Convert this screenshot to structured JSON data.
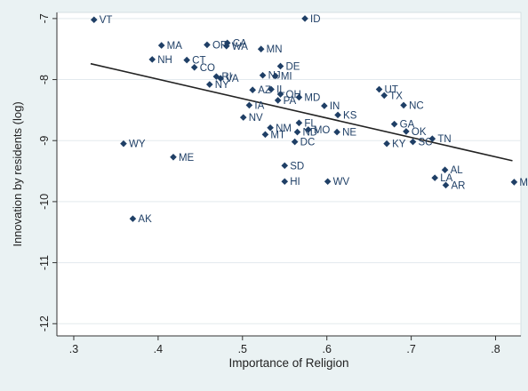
{
  "chart_data": {
    "type": "scatter",
    "title": "",
    "xlabel": "Importance of Religion",
    "ylabel": "Innovation by residents (log)",
    "xlim": [
      0.28,
      0.83
    ],
    "ylim": [
      -12.2,
      -6.9
    ],
    "xticks": [
      0.3,
      0.4,
      0.5,
      0.6,
      0.7,
      0.8
    ],
    "xtick_labels": [
      ".3",
      ".4",
      ".5",
      ".6",
      ".7",
      ".8"
    ],
    "yticks": [
      -7,
      -8,
      -9,
      -10,
      -11,
      -12
    ],
    "ytick_labels": [
      "-7",
      "-8",
      "-9",
      "-10",
      "-11",
      "-12"
    ],
    "grid": true,
    "legend": "none",
    "colors": {
      "page_background": "#eaf2f3",
      "plot_background": "#ffffff",
      "marker": "#1f3f66",
      "label": "#1f3f66",
      "fit_line": "#222222",
      "grid": "#e3eaee",
      "axis": "#333333"
    },
    "fit_line": {
      "x": [
        0.32,
        0.82
      ],
      "y": [
        -7.74,
        -9.33
      ]
    },
    "points": [
      {
        "label": "VT",
        "x": 0.324,
        "y": -7.02
      },
      {
        "label": "ID",
        "x": 0.574,
        "y": -7.0
      },
      {
        "label": "MA",
        "x": 0.404,
        "y": -7.44
      },
      {
        "label": "OR",
        "x": 0.458,
        "y": -7.43
      },
      {
        "label": "CA",
        "x": 0.482,
        "y": -7.4
      },
      {
        "label": "WA",
        "x": 0.481,
        "y": -7.45
      },
      {
        "label": "MN",
        "x": 0.522,
        "y": -7.5
      },
      {
        "label": "NH",
        "x": 0.393,
        "y": -7.67
      },
      {
        "label": "CT",
        "x": 0.434,
        "y": -7.68
      },
      {
        "label": "CO",
        "x": 0.443,
        "y": -7.8
      },
      {
        "label": "DE",
        "x": 0.545,
        "y": -7.78
      },
      {
        "label": "RI",
        "x": 0.469,
        "y": -7.95
      },
      {
        "label": "NJ",
        "x": 0.524,
        "y": -7.93
      },
      {
        "label": "MI",
        "x": 0.539,
        "y": -7.94
      },
      {
        "label": "VA",
        "x": 0.474,
        "y": -7.98
      },
      {
        "label": "NY",
        "x": 0.461,
        "y": -8.08
      },
      {
        "label": "AZ",
        "x": 0.512,
        "y": -8.17
      },
      {
        "label": "IL",
        "x": 0.534,
        "y": -8.16
      },
      {
        "label": "OH",
        "x": 0.545,
        "y": -8.24
      },
      {
        "label": "MD",
        "x": 0.567,
        "y": -8.29
      },
      {
        "label": "PA",
        "x": 0.542,
        "y": -8.34
      },
      {
        "label": "IA",
        "x": 0.508,
        "y": -8.42
      },
      {
        "label": "IN",
        "x": 0.597,
        "y": -8.43
      },
      {
        "label": "UT",
        "x": 0.662,
        "y": -8.16
      },
      {
        "label": "TX",
        "x": 0.668,
        "y": -8.26
      },
      {
        "label": "NC",
        "x": 0.691,
        "y": -8.42
      },
      {
        "label": "KS",
        "x": 0.613,
        "y": -8.58
      },
      {
        "label": "NV",
        "x": 0.501,
        "y": -8.62
      },
      {
        "label": "FL",
        "x": 0.567,
        "y": -8.71
      },
      {
        "label": "GA",
        "x": 0.68,
        "y": -8.73
      },
      {
        "label": "NM",
        "x": 0.533,
        "y": -8.79
      },
      {
        "label": "MT",
        "x": 0.527,
        "y": -8.9
      },
      {
        "label": "MO",
        "x": 0.578,
        "y": -8.82
      },
      {
        "label": "ND",
        "x": 0.565,
        "y": -8.86
      },
      {
        "label": "NE",
        "x": 0.612,
        "y": -8.86
      },
      {
        "label": "OK",
        "x": 0.694,
        "y": -8.85
      },
      {
        "label": "DC",
        "x": 0.562,
        "y": -9.02
      },
      {
        "label": "TN",
        "x": 0.725,
        "y": -8.97
      },
      {
        "label": "SC",
        "x": 0.702,
        "y": -9.02
      },
      {
        "label": "KY",
        "x": 0.671,
        "y": -9.05
      },
      {
        "label": "WY",
        "x": 0.359,
        "y": -9.05
      },
      {
        "label": "ME",
        "x": 0.418,
        "y": -9.27
      },
      {
        "label": "SD",
        "x": 0.55,
        "y": -9.41
      },
      {
        "label": "AL",
        "x": 0.74,
        "y": -9.48
      },
      {
        "label": "LA",
        "x": 0.728,
        "y": -9.61
      },
      {
        "label": "HI",
        "x": 0.55,
        "y": -9.67
      },
      {
        "label": "WV",
        "x": 0.601,
        "y": -9.67
      },
      {
        "label": "AR",
        "x": 0.741,
        "y": -9.73
      },
      {
        "label": "MS",
        "x": 0.822,
        "y": -9.68
      },
      {
        "label": "AK",
        "x": 0.37,
        "y": -10.28
      }
    ]
  }
}
